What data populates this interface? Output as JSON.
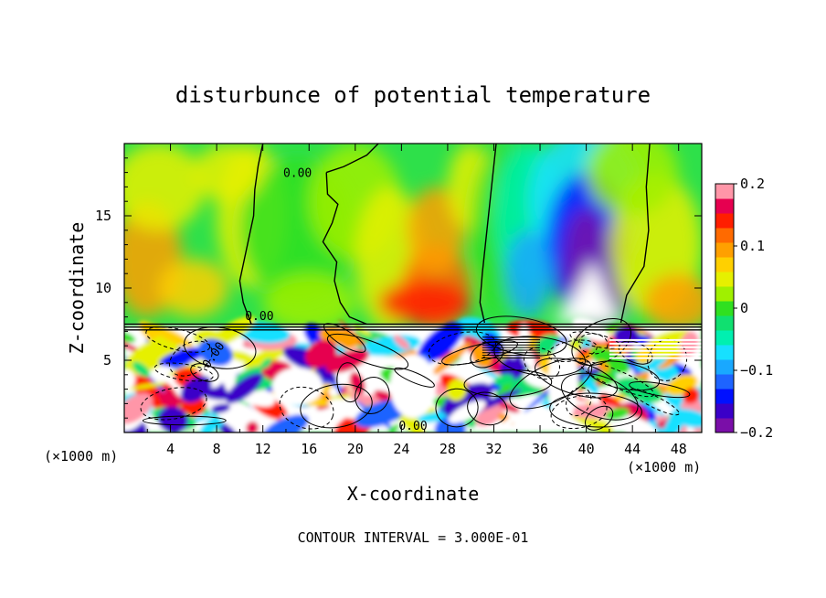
{
  "chart_data": {
    "type": "heatmap",
    "title": "disturbunce of potential temperature",
    "xlabel": "X-coordinate",
    "ylabel": "Z-coordinate",
    "x_unit": "(×1000 m)",
    "y_unit": "(×1000 m)",
    "xlim": [
      0,
      50
    ],
    "ylim": [
      0,
      20
    ],
    "x_ticks": [
      "4",
      "8",
      "12",
      "16",
      "20",
      "24",
      "28",
      "32",
      "36",
      "40",
      "44",
      "48"
    ],
    "x_tick_values": [
      4,
      8,
      12,
      16,
      20,
      24,
      28,
      32,
      36,
      40,
      44,
      48
    ],
    "y_ticks": [
      "5",
      "10",
      "15"
    ],
    "y_tick_values": [
      5,
      10,
      15
    ],
    "colorbar": {
      "min": -0.2,
      "max": 0.2,
      "labels": [
        "0.2",
        "0.1",
        "0",
        "−0.1",
        "−0.2"
      ],
      "label_values": [
        0.2,
        0.1,
        0,
        -0.1,
        -0.2
      ],
      "colors": [
        "#7a0ea8",
        "#3a00c8",
        "#0010ff",
        "#1e64ff",
        "#19a8ff",
        "#17e0ff",
        "#00f0b0",
        "#10e070",
        "#30e020",
        "#a0f000",
        "#e6f000",
        "#ffd000",
        "#ffa000",
        "#ff6a00",
        "#ff1e00",
        "#e60050",
        "#ff96a8"
      ]
    },
    "contour_labels": [
      "0.00",
      "0.00",
      "0.00",
      "0.00"
    ],
    "contour_interval_text": "CONTOUR INTERVAL = 3.000E-01",
    "features": [
      {
        "x": 40,
        "z": 13,
        "value": -0.2
      },
      {
        "x": 27,
        "z": 11,
        "value": 0.12
      },
      {
        "x": 2,
        "z": 11,
        "value": 0.1
      },
      {
        "x": 16,
        "z": 14,
        "value": 0.02
      }
    ]
  }
}
